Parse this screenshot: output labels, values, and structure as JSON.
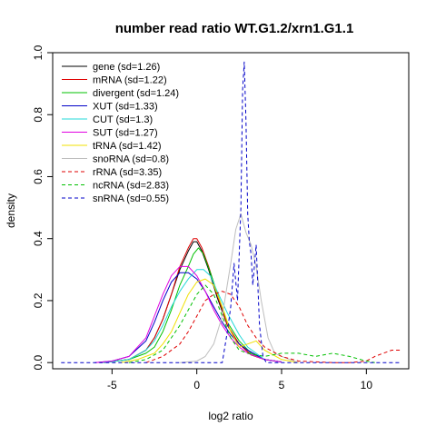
{
  "chart_data": {
    "type": "line",
    "title": "number read ratio WT.G1.2/xrn1.G1.1",
    "xlabel": "log2 ratio",
    "ylabel": "density",
    "xlim": [
      -8.5,
      12.5
    ],
    "ylim": [
      -0.02,
      1.0
    ],
    "x_ticks": [
      -5,
      0,
      5,
      10
    ],
    "y_ticks": [
      0.0,
      0.2,
      0.4,
      0.6,
      0.8,
      1.0
    ],
    "x_tick_labels": [
      "-5",
      "0",
      "5",
      "10"
    ],
    "y_tick_labels": [
      "0.0",
      "0.2",
      "0.4",
      "0.6",
      "0.8",
      "1.0"
    ],
    "grid": false,
    "legend_position": "top-left",
    "series": [
      {
        "name": "gene (sd=1.26)",
        "color": "#000000",
        "dash": "solid",
        "x": [
          -5.5,
          -4,
          -3,
          -2.5,
          -2,
          -1.5,
          -1,
          -0.5,
          -0.2,
          0,
          0.3,
          0.7,
          1.2,
          1.8,
          2.5,
          3.2,
          4,
          5
        ],
        "y": [
          0,
          0.01,
          0.04,
          0.08,
          0.14,
          0.22,
          0.3,
          0.36,
          0.39,
          0.39,
          0.36,
          0.3,
          0.21,
          0.12,
          0.06,
          0.025,
          0.01,
          0.002
        ]
      },
      {
        "name": "mRNA (sd=1.22)",
        "color": "#df0000",
        "dash": "solid",
        "x": [
          -5.5,
          -4,
          -3,
          -2.5,
          -2,
          -1.5,
          -1,
          -0.5,
          -0.2,
          0,
          0.3,
          0.7,
          1.2,
          1.8,
          2.5,
          3.2,
          4,
          5
        ],
        "y": [
          0,
          0.01,
          0.04,
          0.08,
          0.14,
          0.22,
          0.31,
          0.37,
          0.4,
          0.4,
          0.37,
          0.31,
          0.22,
          0.12,
          0.06,
          0.025,
          0.01,
          0.002
        ]
      },
      {
        "name": "divergent (sd=1.24)",
        "color": "#00c000",
        "dash": "solid",
        "x": [
          -5.5,
          -4,
          -3,
          -2.5,
          -2,
          -1.5,
          -1,
          -0.5,
          -0.2,
          0.1,
          0.4,
          0.8,
          1.3,
          1.8,
          2.5,
          3.2,
          4,
          5
        ],
        "y": [
          0,
          0.01,
          0.03,
          0.05,
          0.1,
          0.17,
          0.25,
          0.31,
          0.35,
          0.37,
          0.35,
          0.29,
          0.21,
          0.13,
          0.07,
          0.03,
          0.01,
          0.002
        ]
      },
      {
        "name": "XUT (sd=1.33)",
        "color": "#0000c8",
        "dash": "solid",
        "x": [
          -6,
          -5,
          -4,
          -3,
          -2.5,
          -2,
          -1.5,
          -1,
          -0.5,
          0,
          0.5,
          1,
          1.5,
          2,
          2.5,
          3,
          3.5,
          4,
          5
        ],
        "y": [
          0,
          0.005,
          0.02,
          0.07,
          0.13,
          0.2,
          0.26,
          0.29,
          0.29,
          0.27,
          0.23,
          0.18,
          0.13,
          0.09,
          0.06,
          0.04,
          0.025,
          0.01,
          0.002
        ]
      },
      {
        "name": "CUT (sd=1.3)",
        "color": "#22d8d8",
        "dash": "solid",
        "x": [
          -5.5,
          -4,
          -3,
          -2.5,
          -2,
          -1.5,
          -1,
          -0.5,
          0,
          0.4,
          0.8,
          1.2,
          1.8,
          2.5,
          3,
          3.5,
          4,
          5
        ],
        "y": [
          0,
          0.01,
          0.04,
          0.07,
          0.12,
          0.18,
          0.23,
          0.27,
          0.3,
          0.3,
          0.28,
          0.23,
          0.16,
          0.09,
          0.05,
          0.03,
          0.01,
          0.002
        ]
      },
      {
        "name": "SUT (sd=1.27)",
        "color": "#e000e0",
        "dash": "solid",
        "x": [
          -6,
          -5,
          -4,
          -3,
          -2.5,
          -2,
          -1.5,
          -1,
          -0.5,
          0,
          0.5,
          1,
          1.5,
          2,
          2.5,
          3,
          3.5,
          4,
          5
        ],
        "y": [
          0,
          0.005,
          0.02,
          0.08,
          0.15,
          0.22,
          0.28,
          0.31,
          0.31,
          0.28,
          0.23,
          0.17,
          0.12,
          0.08,
          0.05,
          0.03,
          0.02,
          0.01,
          0.002
        ]
      },
      {
        "name": "tRNA (sd=1.42)",
        "color": "#f0e000",
        "dash": "solid",
        "x": [
          -4.5,
          -3.5,
          -2.5,
          -2,
          -1.5,
          -1,
          -0.5,
          0,
          0.5,
          1,
          1.5,
          2,
          2.5,
          3,
          3.5,
          4,
          5,
          6
        ],
        "y": [
          0,
          0.01,
          0.03,
          0.06,
          0.1,
          0.16,
          0.22,
          0.26,
          0.27,
          0.25,
          0.18,
          0.1,
          0.05,
          0.06,
          0.07,
          0.04,
          0.01,
          0
        ]
      },
      {
        "name": "snoRNA (sd=0.8)",
        "color": "#bebebe",
        "dash": "solid",
        "x": [
          -1,
          0,
          0.5,
          1,
          1.5,
          2,
          2.3,
          2.6,
          2.9,
          3.2,
          3.5,
          3.8,
          4.2,
          4.6,
          5,
          5.5,
          6
        ],
        "y": [
          0,
          0.005,
          0.02,
          0.06,
          0.15,
          0.32,
          0.43,
          0.48,
          0.42,
          0.38,
          0.31,
          0.2,
          0.08,
          0.03,
          0.02,
          0.01,
          0
        ]
      },
      {
        "name": "rRNA (sd=3.35)",
        "color": "#df0000",
        "dash": "dashed",
        "x": [
          -3,
          -2,
          -1,
          -0.5,
          0,
          0.5,
          1,
          1.5,
          2,
          2.5,
          3,
          3.5,
          4,
          5,
          6,
          8,
          9,
          10,
          10.5,
          11,
          11.5,
          12
        ],
        "y": [
          0,
          0.02,
          0.06,
          0.1,
          0.15,
          0.2,
          0.22,
          0.23,
          0.22,
          0.18,
          0.12,
          0.08,
          0.05,
          0.02,
          0.005,
          0,
          0,
          0.005,
          0.02,
          0.03,
          0.04,
          0.04
        ]
      },
      {
        "name": "ncRNA (sd=2.83)",
        "color": "#00c000",
        "dash": "dashed",
        "x": [
          -4,
          -3,
          -2,
          -1,
          0,
          0.5,
          1,
          1.5,
          2,
          2.5,
          3,
          4,
          5,
          6,
          7,
          8,
          9,
          10,
          10.5
        ],
        "y": [
          0,
          0.01,
          0.04,
          0.12,
          0.22,
          0.25,
          0.22,
          0.15,
          0.08,
          0.04,
          0.03,
          0.02,
          0.03,
          0.03,
          0.02,
          0.03,
          0.02,
          0.005,
          0
        ]
      },
      {
        "name": "snRNA (sd=0.55)",
        "color": "#0000c8",
        "dash": "dashed",
        "x": [
          -8,
          -6,
          -4,
          0,
          1.5,
          1.8,
          2.0,
          2.2,
          2.4,
          2.6,
          2.7,
          2.8,
          2.9,
          3.0,
          3.1,
          3.2,
          3.3,
          3.5,
          3.7,
          3.9,
          4.1,
          12
        ],
        "y": [
          0,
          0,
          0,
          0,
          0,
          0.1,
          0.18,
          0.32,
          0.2,
          0.5,
          0.88,
          0.97,
          0.78,
          0.48,
          0.39,
          0.35,
          0.25,
          0.38,
          0.12,
          0.02,
          0,
          0
        ]
      }
    ]
  }
}
